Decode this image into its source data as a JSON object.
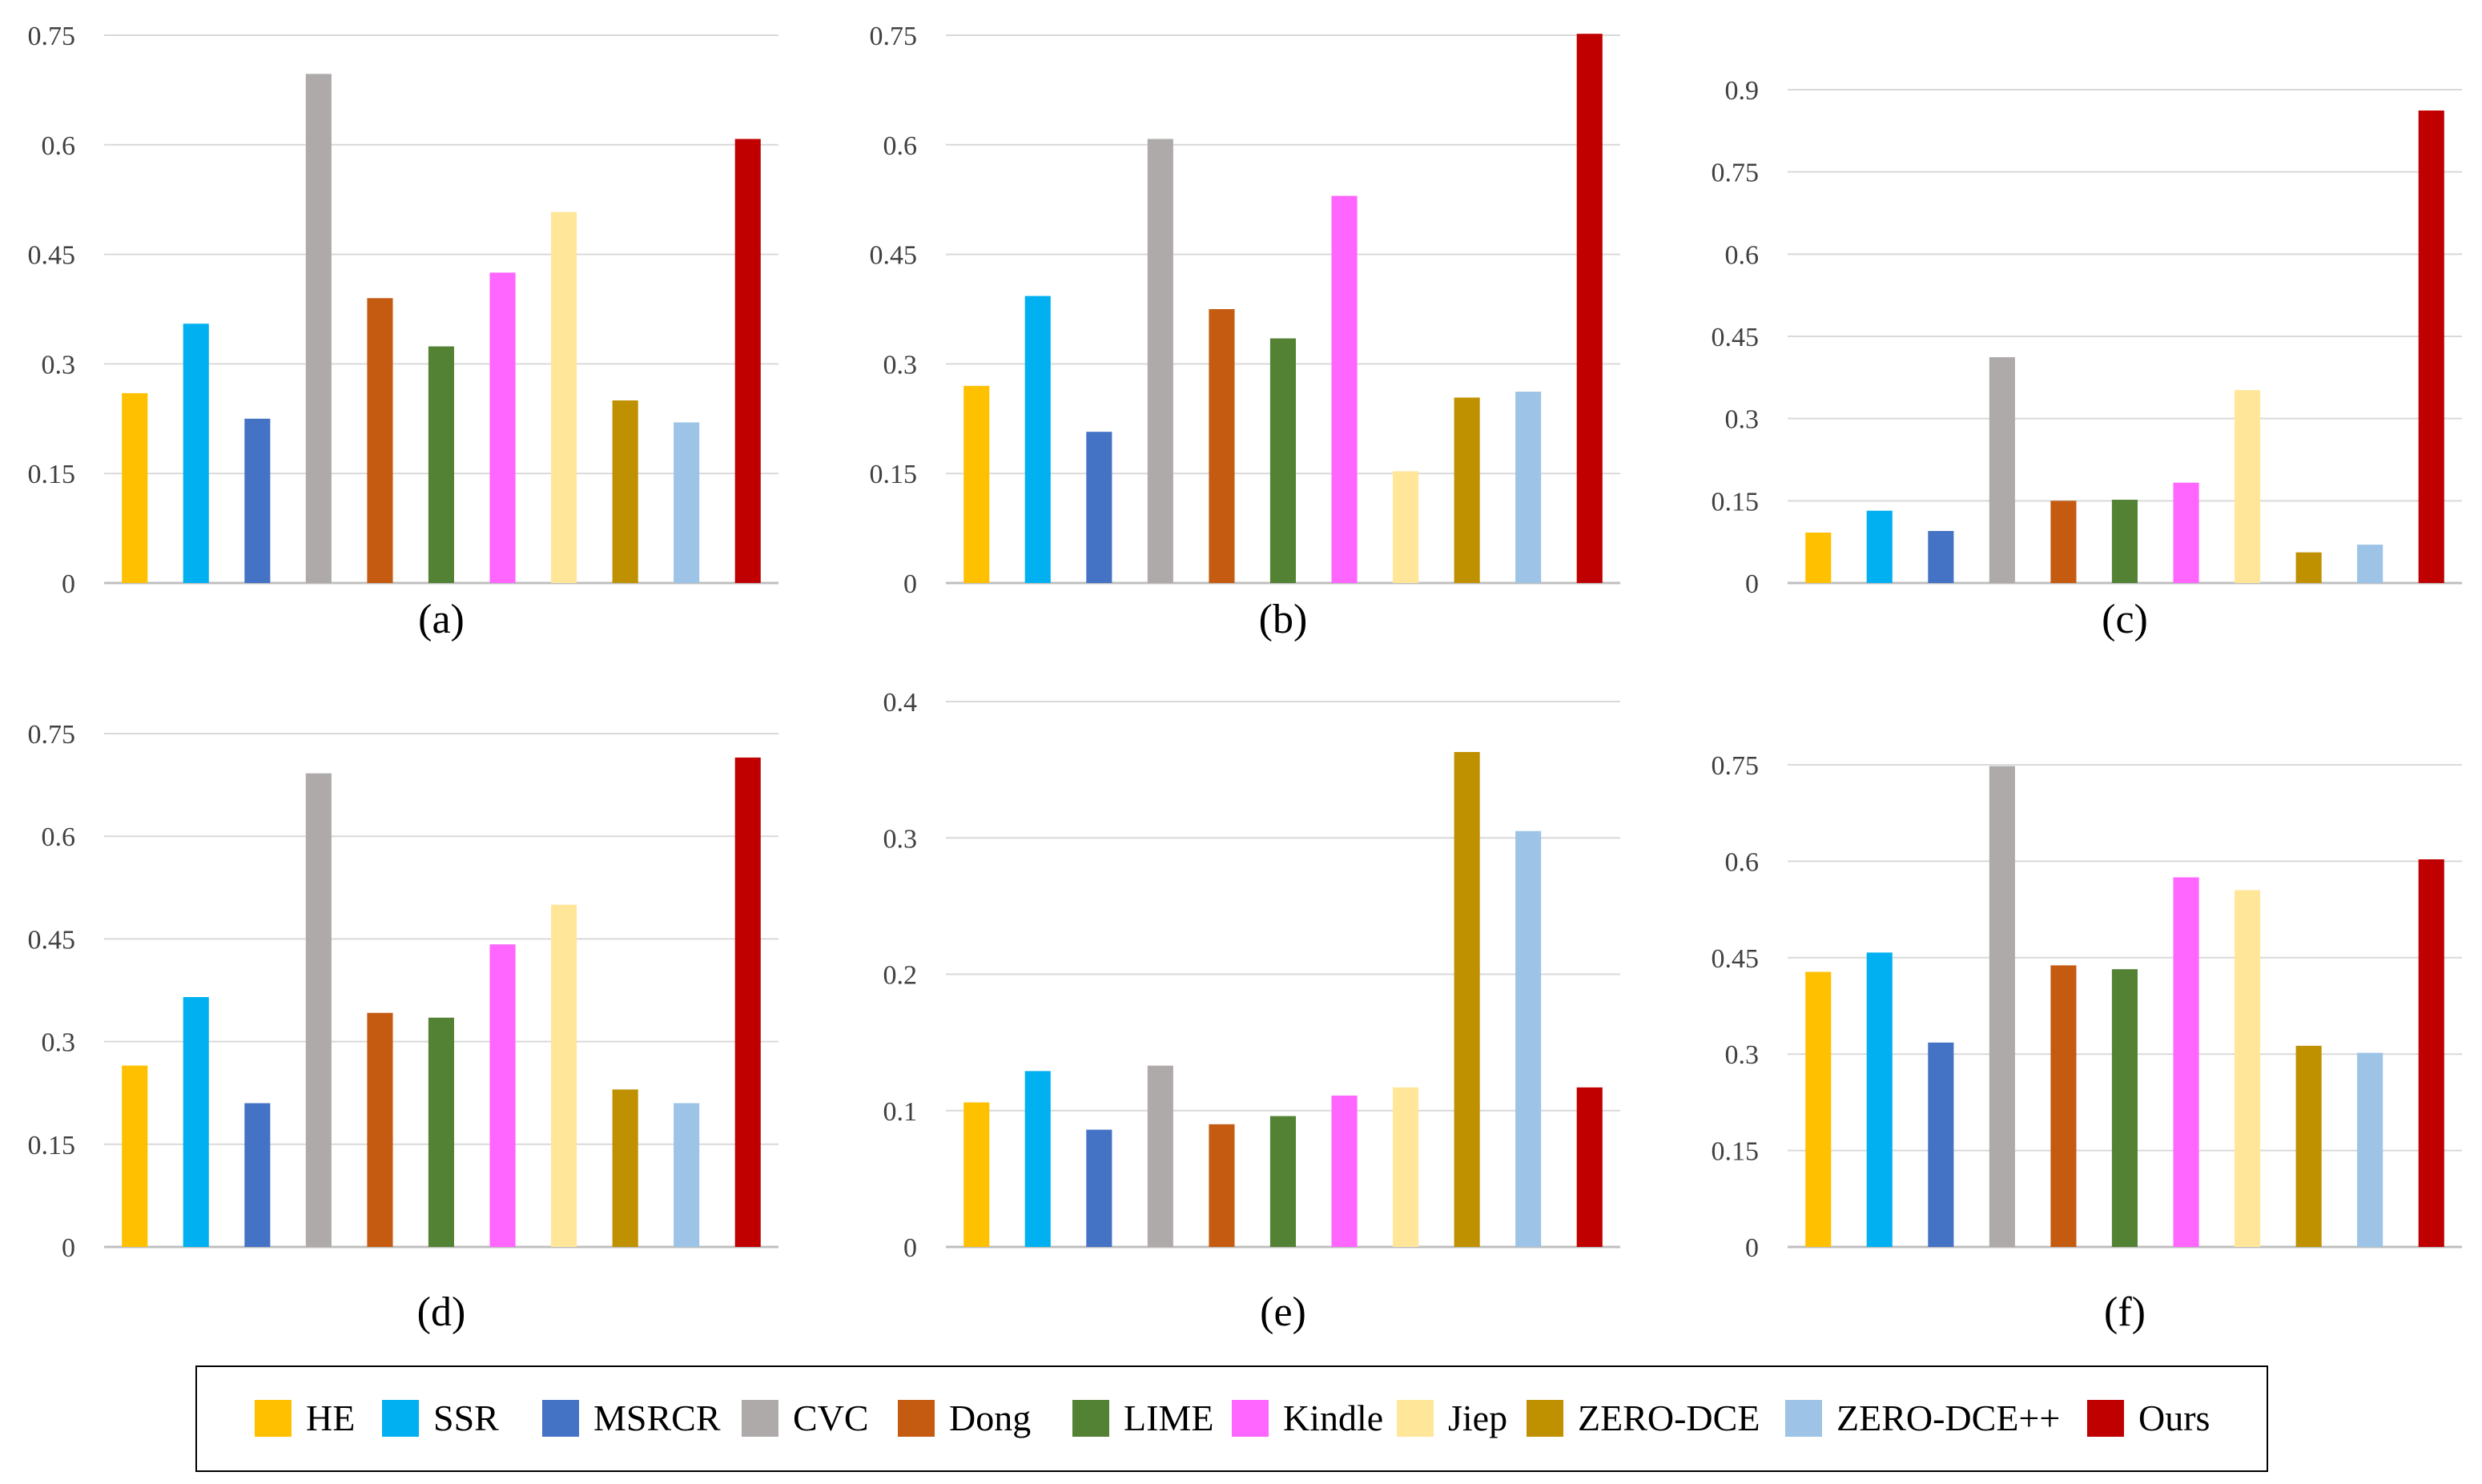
{
  "legend": {
    "entries": [
      {
        "name": "HE",
        "color": "#FFC000"
      },
      {
        "name": "SSR",
        "color": "#00B0F0"
      },
      {
        "name": "MSRCR",
        "color": "#4472C4"
      },
      {
        "name": "CVC",
        "color": "#AEAAAA"
      },
      {
        "name": "Dong",
        "color": "#C55A11"
      },
      {
        "name": "LIME",
        "color": "#548235"
      },
      {
        "name": "Kindle",
        "color": "#FF66FF"
      },
      {
        "name": "Jiep",
        "color": "#FFE699"
      },
      {
        "name": "ZERO-DCE",
        "color": "#BF9000"
      },
      {
        "name": "ZERO-DCE++",
        "color": "#9DC3E6"
      },
      {
        "name": "Ours",
        "color": "#C00000"
      }
    ]
  },
  "chart_data": [
    {
      "type": "bar",
      "title": "(a)",
      "categories": [
        "HE",
        "SSR",
        "MSRCR",
        "CVC",
        "Dong",
        "LIME",
        "Kindle",
        "Jiep",
        "ZERO-DCE",
        "ZERO-DCE++",
        "Ours"
      ],
      "values": [
        0.26,
        0.355,
        0.225,
        0.697,
        0.39,
        0.324,
        0.425,
        0.508,
        0.25,
        0.22,
        0.608
      ],
      "ylim": [
        0,
        0.75
      ],
      "yticks": [
        0,
        0.15,
        0.3,
        0.45,
        0.6,
        0.75
      ],
      "ytick_labels": [
        "0",
        "0.15",
        "0.3",
        "0.45",
        "0.6",
        "0.75"
      ]
    },
    {
      "type": "bar",
      "title": "(b)",
      "categories": [
        "HE",
        "SSR",
        "MSRCR",
        "CVC",
        "Dong",
        "LIME",
        "Kindle",
        "Jiep",
        "ZERO-DCE",
        "ZERO-DCE++",
        "Ours"
      ],
      "values": [
        0.27,
        0.393,
        0.207,
        0.608,
        0.375,
        0.335,
        0.53,
        0.153,
        0.254,
        0.262,
        0.752
      ],
      "ylim": [
        0,
        0.75
      ],
      "yticks": [
        0,
        0.15,
        0.3,
        0.45,
        0.6,
        0.75
      ],
      "ytick_labels": [
        "0",
        "0.15",
        "0.3",
        "0.45",
        "0.6",
        "0.75"
      ]
    },
    {
      "type": "bar",
      "title": "(c)",
      "categories": [
        "HE",
        "SSR",
        "MSRCR",
        "CVC",
        "Dong",
        "LIME",
        "Kindle",
        "Jiep",
        "ZERO-DCE",
        "ZERO-DCE++",
        "Ours"
      ],
      "values": [
        0.092,
        0.132,
        0.095,
        0.412,
        0.15,
        0.152,
        0.183,
        0.352,
        0.056,
        0.07,
        0.862
      ],
      "ylim": [
        0,
        0.9
      ],
      "yticks": [
        0,
        0.15,
        0.3,
        0.45,
        0.6,
        0.75,
        0.9
      ],
      "ytick_labels": [
        "0",
        "0.15",
        "0.3",
        "0.45",
        "0.6",
        "0.75",
        "0.9"
      ]
    },
    {
      "type": "bar",
      "title": "(d)",
      "categories": [
        "HE",
        "SSR",
        "MSRCR",
        "CVC",
        "Dong",
        "LIME",
        "Kindle",
        "Jiep",
        "ZERO-DCE",
        "ZERO-DCE++",
        "Ours"
      ],
      "values": [
        0.265,
        0.365,
        0.21,
        0.692,
        0.342,
        0.335,
        0.442,
        0.5,
        0.23,
        0.21,
        0.715
      ],
      "ylim": [
        0,
        0.75
      ],
      "yticks": [
        0,
        0.15,
        0.3,
        0.45,
        0.6,
        0.75
      ],
      "ytick_labels": [
        "0",
        "0.15",
        "0.3",
        "0.45",
        "0.6",
        "0.75"
      ]
    },
    {
      "type": "bar",
      "title": "(e)",
      "categories": [
        "HE",
        "SSR",
        "MSRCR",
        "CVC",
        "Dong",
        "LIME",
        "Kindle",
        "Jiep",
        "ZERO-DCE",
        "ZERO-DCE++",
        "Ours"
      ],
      "values": [
        0.106,
        0.129,
        0.086,
        0.133,
        0.09,
        0.096,
        0.111,
        0.117,
        0.363,
        0.305,
        0.117
      ],
      "ylim": [
        0,
        0.4
      ],
      "yticks": [
        0,
        0.1,
        0.2,
        0.3,
        0.4
      ],
      "ytick_labels": [
        "0",
        "0.1",
        "0.2",
        "0.3",
        "0.4"
      ]
    },
    {
      "type": "bar",
      "title": "(f)",
      "categories": [
        "HE",
        "SSR",
        "MSRCR",
        "CVC",
        "Dong",
        "LIME",
        "Kindle",
        "Jiep",
        "ZERO-DCE",
        "ZERO-DCE++",
        "Ours"
      ],
      "values": [
        0.428,
        0.458,
        0.318,
        0.748,
        0.438,
        0.432,
        0.575,
        0.555,
        0.313,
        0.302,
        0.603
      ],
      "ylim": [
        0,
        0.75
      ],
      "yticks": [
        0,
        0.15,
        0.3,
        0.45,
        0.6,
        0.75
      ],
      "ytick_labels": [
        "0",
        "0.15",
        "0.3",
        "0.45",
        "0.6",
        "0.75"
      ]
    }
  ]
}
